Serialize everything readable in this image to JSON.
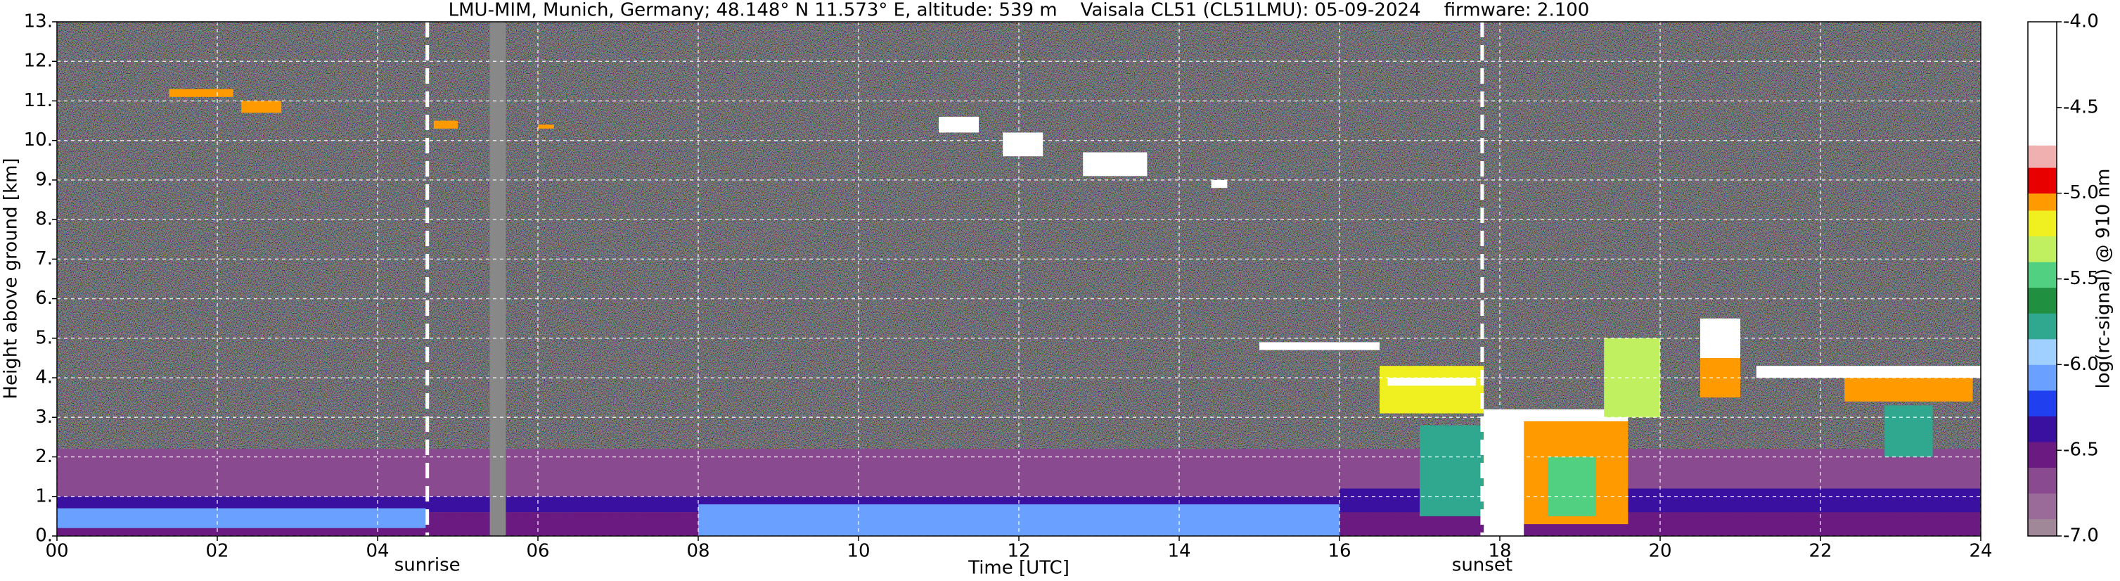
{
  "chart_data": {
    "type": "heatmap",
    "title": "LMU-MIM, Munich, Germany; 48.148° N 11.573° E, altitude: 539 m    Vaisala CL51 (CL51LMU): 05-09-2024    firmware: 2.100",
    "x_label": "Time [UTC]",
    "y_label": "Height above ground [km]",
    "colorbar_label": "log(rc-signal) @ 910 nm",
    "xlim": [
      0,
      24
    ],
    "xticks": [
      {
        "value": 0,
        "label": "00"
      },
      {
        "value": 2,
        "label": "02"
      },
      {
        "value": 4,
        "label": "04"
      },
      {
        "value": 6,
        "label": "06"
      },
      {
        "value": 8,
        "label": "08"
      },
      10,
      12,
      14,
      16,
      18,
      20,
      22,
      24
    ],
    "ylim": [
      0,
      13
    ],
    "yticks": [
      {
        "value": 0,
        "label": "0."
      },
      {
        "value": 1,
        "label": "1."
      },
      {
        "value": 2,
        "label": "2."
      },
      {
        "value": 3,
        "label": "3."
      },
      {
        "value": 4,
        "label": "4."
      },
      {
        "value": 5,
        "label": "5."
      },
      {
        "value": 6,
        "label": "6."
      },
      {
        "value": 7,
        "label": "7."
      },
      {
        "value": 8,
        "label": "8."
      },
      {
        "value": 9,
        "label": "9."
      },
      {
        "value": 10,
        "label": "10."
      },
      {
        "value": 11,
        "label": "11."
      },
      {
        "value": 12,
        "label": "12."
      },
      {
        "value": 13,
        "label": "13."
      }
    ],
    "grid": true,
    "annotations": [
      {
        "x": 4.62,
        "label": "sunrise"
      },
      {
        "x": 17.78,
        "label": "sunset"
      }
    ],
    "colorbar": {
      "lim": [
        -7,
        -4
      ],
      "ticks": [
        {
          "value": -4,
          "label": "-4.0"
        },
        {
          "value": -4.5,
          "label": "-4.5"
        },
        {
          "value": -5,
          "label": "-5.0"
        },
        {
          "value": -5.5,
          "label": "-5.5"
        },
        {
          "value": -6,
          "label": "-6.0"
        },
        {
          "value": -6.5,
          "label": "-6.5"
        },
        {
          "value": -7,
          "label": "-7.0"
        }
      ],
      "bounds": [
        -7,
        -6.9,
        -6.75,
        -6.6,
        -6.45,
        -6.3,
        -6.15,
        -6.0,
        -5.85,
        -5.7,
        -5.55,
        -5.4,
        -5.25,
        -5.1,
        -5.0,
        -4.85,
        -4.72,
        -4.0
      ],
      "colors": [
        "#a08898",
        "#9a6a98",
        "#8a4a90",
        "#6a1a80",
        "#3a10a0",
        "#2040f0",
        "#6aa0ff",
        "#a0d0ff",
        "#30a890",
        "#209040",
        "#50d080",
        "#c0f060",
        "#f0f020",
        "#ff9a00",
        "#e80000",
        "#f0b0b0",
        "#ffffff"
      ],
      "missing_color": "#888888"
    },
    "cells": [
      {
        "x": [
          0,
          24
        ],
        "y": [
          1.0,
          2.2
        ],
        "value": -6.7
      },
      {
        "x": [
          0,
          24
        ],
        "y": [
          0.6,
          1.0
        ],
        "value": -6.35
      },
      {
        "x": [
          0,
          24
        ],
        "y": [
          0,
          0.6
        ],
        "value": -6.5
      },
      {
        "x": [
          0,
          4.6
        ],
        "y": [
          0.2,
          0.7
        ],
        "value": -6.1
      },
      {
        "x": [
          8,
          16
        ],
        "y": [
          0,
          0.8
        ],
        "value": -6.1
      },
      {
        "x": [
          16,
          24
        ],
        "y": [
          0.6,
          1.2
        ],
        "value": -6.35
      },
      {
        "x": [
          5.4,
          5.6
        ],
        "y": [
          0,
          13
        ],
        "value": null
      },
      {
        "x": [
          1.4,
          2.2
        ],
        "y": [
          11.1,
          11.3
        ],
        "value": -5.05
      },
      {
        "x": [
          2.3,
          2.8
        ],
        "y": [
          10.7,
          11.0
        ],
        "value": -5.05
      },
      {
        "x": [
          4.7,
          5.0
        ],
        "y": [
          10.3,
          10.5
        ],
        "value": -5.05
      },
      {
        "x": [
          6.0,
          6.2
        ],
        "y": [
          10.3,
          10.4
        ],
        "value": -5.05
      },
      {
        "x": [
          11.0,
          11.5
        ],
        "y": [
          10.2,
          10.6
        ],
        "value": -4.6
      },
      {
        "x": [
          11.8,
          12.3
        ],
        "y": [
          9.6,
          10.2
        ],
        "value": -4.6
      },
      {
        "x": [
          12.8,
          13.6
        ],
        "y": [
          9.1,
          9.7
        ],
        "value": -4.6
      },
      {
        "x": [
          14.4,
          14.6
        ],
        "y": [
          8.8,
          9.0
        ],
        "value": -4.6
      },
      {
        "x": [
          15.0,
          16.5
        ],
        "y": [
          4.7,
          4.9
        ],
        "value": -4.3
      },
      {
        "x": [
          16.5,
          17.8
        ],
        "y": [
          3.1,
          4.3
        ],
        "value": -5.2
      },
      {
        "x": [
          16.6,
          17.7
        ],
        "y": [
          3.8,
          4.0
        ],
        "value": -4.3
      },
      {
        "x": [
          17.0,
          17.8
        ],
        "y": [
          0.5,
          2.8
        ],
        "value": -5.7
      },
      {
        "x": [
          17.8,
          19.6
        ],
        "y": [
          0.3,
          2.9
        ],
        "value": -5.05
      },
      {
        "x": [
          18.6,
          19.2
        ],
        "y": [
          0.5,
          2.0
        ],
        "value": -5.5
      },
      {
        "x": [
          17.8,
          19.6
        ],
        "y": [
          2.9,
          3.2
        ],
        "value": -4.3
      },
      {
        "x": [
          17.8,
          18.3
        ],
        "y": [
          0,
          3.0
        ],
        "value": -4.3
      },
      {
        "x": [
          19.3,
          20.0
        ],
        "y": [
          3.0,
          5.0
        ],
        "value": -5.3
      },
      {
        "x": [
          20.5,
          21.0
        ],
        "y": [
          3.5,
          5.4
        ],
        "value": -5.05
      },
      {
        "x": [
          20.5,
          21.0
        ],
        "y": [
          4.5,
          5.5
        ],
        "value": -4.3
      },
      {
        "x": [
          21.2,
          24
        ],
        "y": [
          4.0,
          4.3
        ],
        "value": -4.3
      },
      {
        "x": [
          22.3,
          23.9
        ],
        "y": [
          3.4,
          4.0
        ],
        "value": -5.05
      },
      {
        "x": [
          22.8,
          23.4
        ],
        "y": [
          2.0,
          3.3
        ],
        "value": -5.7
      }
    ]
  }
}
